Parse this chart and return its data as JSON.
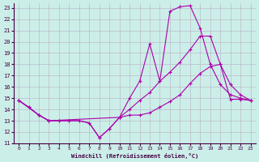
{
  "xlabel": "Windchill (Refroidissement éolien,°C)",
  "ylabel": "",
  "background_color": "#cceee8",
  "grid_color": "#bbbbcc",
  "line_color": "#aa00aa",
  "xlim": [
    -0.5,
    23.5
  ],
  "ylim": [
    11,
    23.4
  ],
  "xticks": [
    0,
    1,
    2,
    3,
    4,
    5,
    6,
    7,
    8,
    9,
    10,
    11,
    12,
    13,
    14,
    15,
    16,
    17,
    18,
    19,
    20,
    21,
    22,
    23
  ],
  "yticks": [
    11,
    12,
    13,
    14,
    15,
    16,
    17,
    18,
    19,
    20,
    21,
    22,
    23
  ],
  "line1_x": [
    0,
    1,
    2,
    3,
    4,
    5,
    6,
    7,
    8,
    9,
    10,
    11,
    12,
    13,
    14,
    15,
    16,
    17,
    18,
    19,
    20,
    21,
    22,
    23
  ],
  "line1_y": [
    14.8,
    14.2,
    13.5,
    13.0,
    13.0,
    13.0,
    13.0,
    12.8,
    11.5,
    12.3,
    13.3,
    15.0,
    16.5,
    19.8,
    16.5,
    22.7,
    23.1,
    23.2,
    21.2,
    18.0,
    16.2,
    15.3,
    15.0,
    14.8
  ],
  "line2_x": [
    0,
    2,
    3,
    10,
    11,
    12,
    13,
    14,
    15,
    16,
    17,
    18,
    19,
    20,
    21,
    22,
    23
  ],
  "line2_y": [
    14.8,
    13.5,
    13.0,
    13.3,
    14.0,
    14.8,
    15.5,
    16.5,
    17.3,
    18.2,
    19.3,
    20.5,
    20.5,
    18.0,
    16.2,
    15.3,
    14.8
  ],
  "line3_x": [
    0,
    1,
    2,
    3,
    4,
    5,
    6,
    7,
    8,
    9,
    10,
    11,
    12,
    13,
    14,
    15,
    16,
    17,
    18,
    19,
    20,
    21,
    22,
    23
  ],
  "line3_y": [
    14.8,
    14.2,
    13.5,
    13.0,
    13.0,
    13.0,
    13.0,
    12.8,
    11.5,
    12.3,
    13.3,
    13.5,
    13.5,
    13.7,
    14.2,
    14.7,
    15.3,
    16.3,
    17.2,
    17.8,
    18.0,
    14.9,
    14.9,
    14.8
  ]
}
